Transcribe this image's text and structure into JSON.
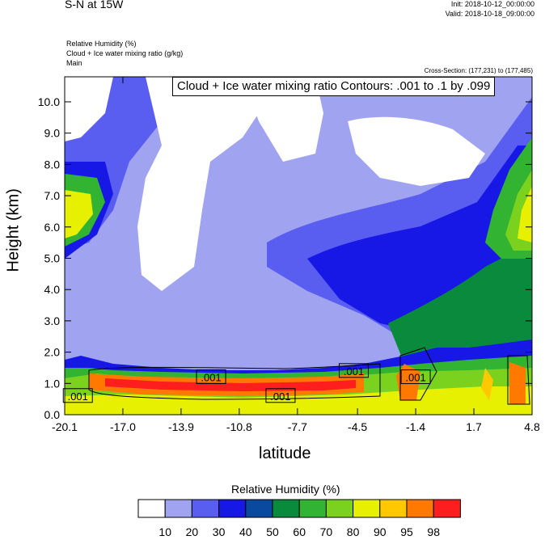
{
  "header": {
    "title": "S-N at 15W",
    "init": "Init: 2018-10-12_00:00:00",
    "valid": "Valid: 2018-10-18_09:00:00",
    "field1": "Relative Humidity   (%)",
    "field2": "Cloud + Ice water mixing ratio   (g/kg)",
    "field3": "Main",
    "cross_section": "Cross-Section: (177,231) to (177,485)",
    "contour_info": "Cloud + Ice water mixing ratio Contours: .001 to .1 by .099"
  },
  "chart_data": {
    "type": "heatmap",
    "xlabel": "latitude",
    "ylabel": "Height (km)",
    "xlim": [
      -20.1,
      4.8
    ],
    "ylim": [
      0.0,
      10.8
    ],
    "x_ticks": [
      "-20.1",
      "-17.0",
      "-13.9",
      "-10.8",
      "-7.7",
      "-4.5",
      "-1.4",
      "1.7",
      "4.8"
    ],
    "x_tick_values": [
      -20.1,
      -17.0,
      -13.9,
      -10.8,
      -7.7,
      -4.5,
      -1.4,
      1.7,
      4.8
    ],
    "y_ticks": [
      "0.0",
      "1.0",
      "2.0",
      "3.0",
      "4.0",
      "5.0",
      "6.0",
      "7.0",
      "8.0",
      "9.0",
      "10.0"
    ],
    "y_tick_values": [
      0,
      1,
      2,
      3,
      4,
      5,
      6,
      7,
      8,
      9,
      10
    ],
    "contour_labels": [
      {
        "text": ".001",
        "x": -19.4,
        "y": 0.6
      },
      {
        "text": ".001",
        "x": -12.3,
        "y": 1.2
      },
      {
        "text": ".001",
        "x": -8.6,
        "y": 0.6
      },
      {
        "text": ".001",
        "x": -4.7,
        "y": 1.4
      },
      {
        "text": ".001",
        "x": -1.4,
        "y": 1.2
      }
    ],
    "colorbar": {
      "title": "Relative Humidity  (%)",
      "levels": [
        "10",
        "20",
        "30",
        "40",
        "50",
        "60",
        "70",
        "80",
        "90",
        "95",
        "98"
      ],
      "colors": [
        "#ffffff",
        "#a0a4f0",
        "#5a5ef0",
        "#1818e6",
        "#0a4a9e",
        "#0a8a3c",
        "#32b432",
        "#7ad21e",
        "#e6f000",
        "#ffc800",
        "#ff7800",
        "#ff1e1e"
      ]
    }
  }
}
